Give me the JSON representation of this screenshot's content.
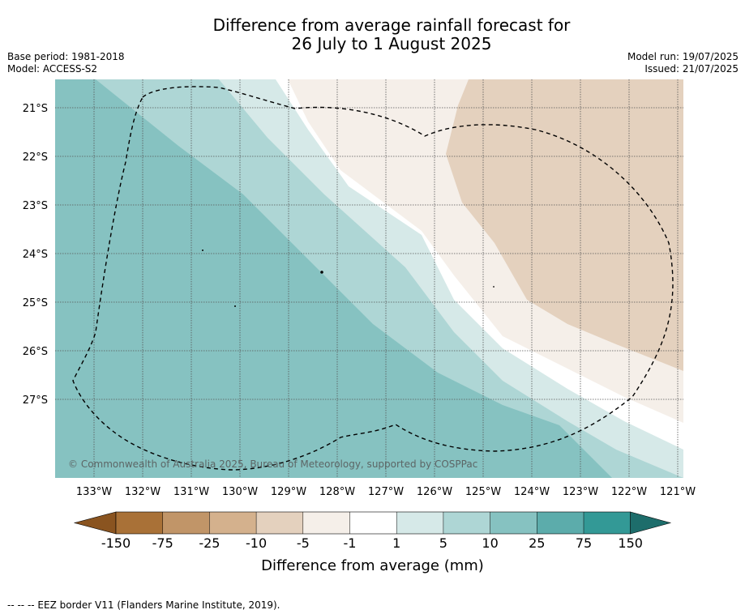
{
  "title_line1": "Difference from average rainfall forecast for",
  "title_line2": "26 July to 1 August 2025",
  "base_period": "Base period: 1981-2018",
  "model": "Model: ACCESS-S2",
  "model_run": "Model run: 19/07/2025",
  "issued": "Issued: 21/07/2025",
  "copyright": "© Commonwealth of Australia 2025, Bureau of Meteorology, supported by COSPPac",
  "lat_labels": [
    "21°S",
    "22°S",
    "23°S",
    "24°S",
    "25°S",
    "26°S",
    "27°S"
  ],
  "lon_labels": [
    "133°W",
    "132°W",
    "131°W",
    "130°W",
    "129°W",
    "128°W",
    "127°W",
    "126°W",
    "125°W",
    "124°W",
    "123°W",
    "122°W",
    "121°W"
  ],
  "colorbar": {
    "label": "Difference from average (mm)",
    "ticks": [
      "-150",
      "-75",
      "-25",
      "-10",
      "-5",
      "-1",
      "1",
      "5",
      "10",
      "25",
      "75",
      "150"
    ],
    "colors": [
      "#a97137",
      "#c19568",
      "#d4b18d",
      "#e4d1be",
      "#f5efe9",
      "#ffffff",
      "#d6e9e8",
      "#aed6d5",
      "#86c2c1",
      "#5cacab",
      "#339996",
      "#217a78"
    ],
    "extend_low_color": "#8a5420",
    "extend_high_color": "#1d6d6b"
  },
  "legend_footer": "-- -- -- EEZ border V11 (Flanders Marine Institute, 2019)."
}
